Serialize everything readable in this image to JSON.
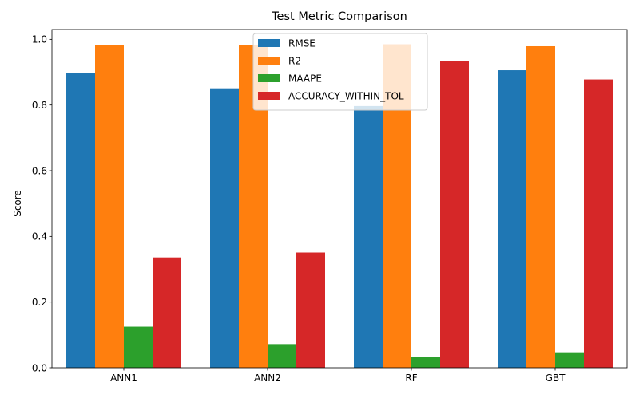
{
  "chart_data": {
    "type": "bar",
    "title": "Test Metric Comparison",
    "xlabel": "",
    "ylabel": "Score",
    "categories": [
      "ANN1",
      "ANN2",
      "RF",
      "GBT"
    ],
    "series": [
      {
        "name": "RMSE",
        "color": "#1f77b4",
        "values": [
          0.898,
          0.851,
          0.797,
          0.906
        ]
      },
      {
        "name": "R2",
        "color": "#ff7f0e",
        "values": [
          0.982,
          0.982,
          0.985,
          0.979
        ]
      },
      {
        "name": "MAAPE",
        "color": "#2ca02c",
        "values": [
          0.125,
          0.072,
          0.033,
          0.047
        ]
      },
      {
        "name": "ACCURACY_WITHIN_TOL",
        "color": "#d62728",
        "values": [
          0.336,
          0.351,
          0.933,
          0.878
        ]
      }
    ],
    "ylim": [
      0.0,
      1.03
    ],
    "yticks": [
      {
        "value": 0.0,
        "label": "0.0"
      },
      {
        "value": 0.2,
        "label": "0.2"
      },
      {
        "value": 0.4,
        "label": "0.4"
      },
      {
        "value": 0.6,
        "label": "0.6"
      },
      {
        "value": 0.8,
        "label": "0.8"
      },
      {
        "value": 1.0,
        "label": "1.0"
      }
    ],
    "grid": false,
    "legend_position": "top-center"
  }
}
